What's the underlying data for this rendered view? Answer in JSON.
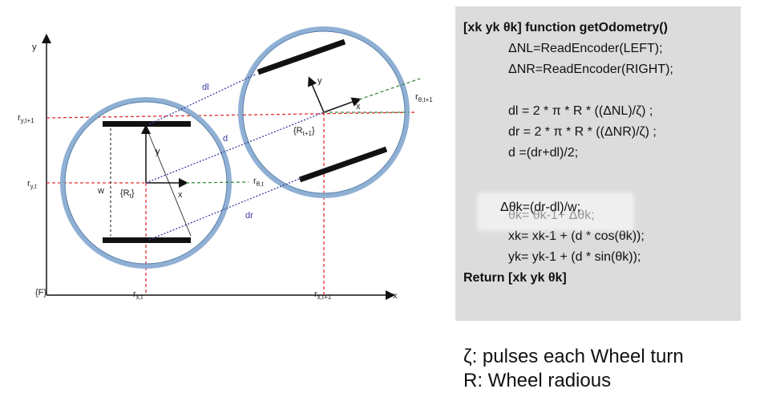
{
  "diagram": {
    "axis_y": "y",
    "axis_x": "x",
    "frame": "{F}",
    "r_y_t1": "r",
    "r_y_t1_sub": "y,t+1",
    "r_y_t": "r",
    "r_y_t_sub": "y,t",
    "r_x_t": "r",
    "r_x_t_sub": "x,t",
    "r_x_t1": "r",
    "r_x_t1_sub": "x,t+1",
    "r_theta_t": "r",
    "r_theta_t_sub": "θ,t",
    "r_theta_t1": "r",
    "r_theta_t1_sub": "θ,t+1",
    "frame_rt": "{R",
    "frame_rt_sub": "t",
    "frame_rt1": "{R",
    "frame_rt1_sub": "t+1",
    "frame_close": "}",
    "w": "w",
    "dl": "dl",
    "d": "d",
    "dr": "dr",
    "local_x": "x",
    "local_y": "y",
    "local_x2": "x",
    "local_y2": "y"
  },
  "code": {
    "header": "[xk yk θk] function getOdometry()",
    "lines": [
      "ΔNL=ReadEncoder(LEFT);",
      "ΔNR=ReadEncoder(RIGHT);",
      "dl = 2 * π * R * ((ΔNL)/ζ) ;",
      "dr = 2 * π * R * ((ΔNR)/ζ) ;",
      "d =(dr+dl)/2;",
      "Δθk=(dr-dl)/w;",
      "θk= θk-1+ Δθk;",
      "xk= xk-1 + (d * cos(θk));",
      "yk= yk-1 + (d * sin(θk));"
    ],
    "footer": "Return [xk yk θk]"
  },
  "notes": {
    "line1": "ζ: pulses each Wheel turn",
    "line2": "R: Wheel radious"
  },
  "colors": {
    "ring": "#8fb0d4",
    "ref_line": "#e03030",
    "theta_line": "#3a8a3a",
    "path": "#3a3aa0",
    "panel": "#dcdcdc"
  }
}
